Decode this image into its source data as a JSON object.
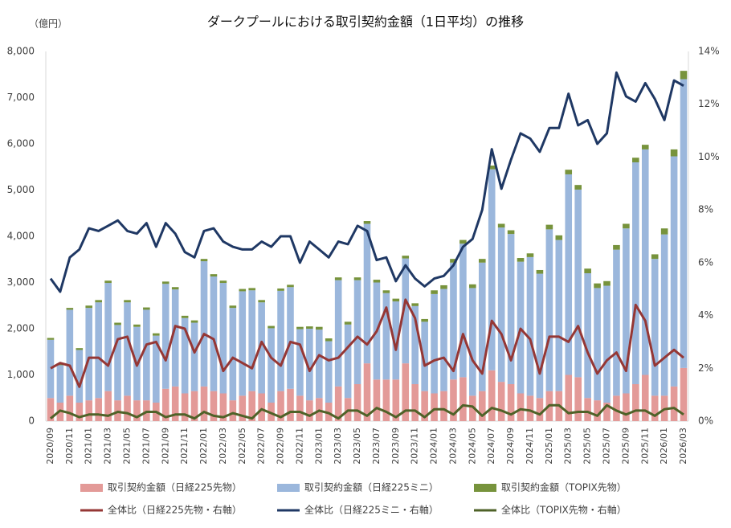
{
  "chart_data": {
    "type": "bar_line_combo",
    "title": "ダークプールにおける取引契約金額（1日平均）の推移",
    "y_unit_label": "（億円）",
    "categories": [
      "2020/09",
      null,
      "2020/11",
      null,
      "2021/01",
      null,
      "2021/03",
      null,
      "2021/05",
      null,
      "2021/07",
      null,
      "2021/09",
      null,
      "2021/11",
      null,
      "2022/01",
      null,
      "2022/03",
      null,
      "2022/05",
      null,
      "2022/07",
      null,
      "2022/09",
      null,
      "2022/11",
      null,
      "2023/01",
      null,
      "2023/03",
      null,
      "2023/05",
      null,
      "2023/07",
      null,
      "2023/09",
      null,
      "2023/11",
      null,
      "2024/01",
      null,
      "2024/03",
      null,
      "2024/05",
      null,
      "2024/07",
      null,
      "2024/09",
      null,
      "2024/11",
      null,
      "2025/01",
      null,
      "2025/03",
      null,
      "2025/05",
      null,
      "2025/07",
      null,
      "2025/09",
      null,
      "2025/11",
      null,
      "2026/01",
      null,
      "2026/03"
    ],
    "series": [
      {
        "name": "取引契約金額（日経225先物）",
        "kind": "bar",
        "color": "#e39a98",
        "values": [
          500,
          400,
          550,
          400,
          450,
          500,
          650,
          450,
          550,
          450,
          450,
          400,
          700,
          750,
          600,
          650,
          750,
          650,
          600,
          450,
          550,
          650,
          600,
          400,
          650,
          700,
          550,
          450,
          500,
          400,
          750,
          500,
          800,
          1250,
          900,
          900,
          900,
          1250,
          800,
          650,
          600,
          650,
          900,
          950,
          550,
          650,
          1100,
          850,
          800,
          600,
          550,
          500,
          650,
          650,
          1000,
          950,
          500,
          450,
          400,
          550,
          600,
          800,
          1000,
          550,
          550,
          750,
          1150
        ]
      },
      {
        "name": "取引契約金額（日経225ミニ）",
        "kind": "bar",
        "color": "#9bb7dc",
        "values": [
          1260,
          810,
          1860,
          1140,
          2000,
          2070,
          2340,
          1630,
          2020,
          1590,
          1960,
          1450,
          2270,
          2100,
          1630,
          1480,
          2710,
          2480,
          2390,
          2000,
          2260,
          2180,
          1970,
          1610,
          2170,
          2200,
          1440,
          1550,
          1480,
          1330,
          2300,
          1590,
          2250,
          3020,
          2100,
          1870,
          1690,
          2270,
          1690,
          1500,
          2150,
          2210,
          2530,
          2890,
          2330,
          2780,
          4350,
          3340,
          3250,
          2850,
          3000,
          2690,
          3500,
          3270,
          4340,
          4060,
          2700,
          2430,
          2530,
          3160,
          3570,
          4800,
          4880,
          2960,
          3490,
          4980,
          6250
        ]
      },
      {
        "name": "取引契約金額（TOPIX先物）",
        "kind": "bar",
        "color": "#77933c",
        "values": [
          40,
          40,
          40,
          40,
          50,
          50,
          50,
          50,
          50,
          50,
          50,
          50,
          50,
          50,
          50,
          50,
          50,
          50,
          50,
          50,
          50,
          50,
          50,
          50,
          50,
          50,
          50,
          50,
          60,
          60,
          60,
          60,
          60,
          60,
          60,
          60,
          60,
          60,
          60,
          60,
          80,
          80,
          80,
          80,
          80,
          80,
          80,
          80,
          80,
          80,
          80,
          80,
          100,
          100,
          100,
          100,
          100,
          100,
          100,
          100,
          100,
          100,
          100,
          100,
          130,
          150,
          180
        ]
      },
      {
        "name": "全体比（日経225先物・右軸）",
        "kind": "line",
        "axis": "y2",
        "color": "#953735",
        "values": [
          2.0,
          2.2,
          2.1,
          1.3,
          2.4,
          2.4,
          2.1,
          3.1,
          3.2,
          2.1,
          2.9,
          3.0,
          2.3,
          3.6,
          3.5,
          2.6,
          3.3,
          3.1,
          1.9,
          2.4,
          2.2,
          2.0,
          3.0,
          2.4,
          2.1,
          3.0,
          2.9,
          1.9,
          2.5,
          2.3,
          2.4,
          2.8,
          3.2,
          2.9,
          3.4,
          4.3,
          2.7,
          4.6,
          3.9,
          2.1,
          2.3,
          2.4,
          1.9,
          3.3,
          2.3,
          1.8,
          3.8,
          3.3,
          2.3,
          3.5,
          3.1,
          1.8,
          3.2,
          3.2,
          3.0,
          3.6,
          2.6,
          1.8,
          2.3,
          2.6,
          1.9,
          4.4,
          3.8,
          2.1,
          2.4,
          2.7,
          2.4
        ]
      },
      {
        "name": "全体比（日経225ミニ・右軸）",
        "kind": "line",
        "axis": "y2",
        "color": "#1f3864",
        "values": [
          5.4,
          4.9,
          6.2,
          6.5,
          7.3,
          7.2,
          7.4,
          7.6,
          7.2,
          7.1,
          7.5,
          6.6,
          7.5,
          7.1,
          6.4,
          6.2,
          7.2,
          7.3,
          6.8,
          6.6,
          6.5,
          6.5,
          6.8,
          6.6,
          7.0,
          7.0,
          6.0,
          6.8,
          6.5,
          6.2,
          6.8,
          6.7,
          7.4,
          7.2,
          6.1,
          6.2,
          5.3,
          5.9,
          5.4,
          5.1,
          5.4,
          5.5,
          5.9,
          6.6,
          6.9,
          8.0,
          10.3,
          8.8,
          9.9,
          10.9,
          10.7,
          10.2,
          11.1,
          11.1,
          12.4,
          11.2,
          11.4,
          10.5,
          10.9,
          13.2,
          12.3,
          12.1,
          12.8,
          12.2,
          11.4,
          12.9,
          12.7
        ]
      },
      {
        "name": "全体比（TOPIX先物・右軸）",
        "kind": "line",
        "axis": "y2",
        "color": "#4f6228",
        "values": [
          0.1,
          0.4,
          0.3,
          0.15,
          0.25,
          0.25,
          0.2,
          0.35,
          0.3,
          0.15,
          0.35,
          0.35,
          0.15,
          0.25,
          0.25,
          0.1,
          0.35,
          0.2,
          0.15,
          0.3,
          0.2,
          0.1,
          0.45,
          0.3,
          0.15,
          0.35,
          0.35,
          0.2,
          0.4,
          0.3,
          0.1,
          0.4,
          0.4,
          0.2,
          0.5,
          0.35,
          0.15,
          0.4,
          0.4,
          0.15,
          0.45,
          0.45,
          0.25,
          0.6,
          0.55,
          0.2,
          0.5,
          0.4,
          0.25,
          0.45,
          0.4,
          0.25,
          0.6,
          0.6,
          0.3,
          0.35,
          0.35,
          0.2,
          0.6,
          0.4,
          0.25,
          0.4,
          0.4,
          0.2,
          0.45,
          0.5,
          0.25
        ]
      }
    ],
    "ylim": [
      0,
      8000
    ],
    "yticks": [
      0,
      {
        "value": 1000,
        "label": "1,000"
      },
      {
        "value": 2000,
        "label": "2,000"
      },
      {
        "value": 3000,
        "label": "3,000"
      },
      {
        "value": 4000,
        "label": "4,000"
      },
      {
        "value": 5000,
        "label": "5,000"
      },
      {
        "value": 6000,
        "label": "6,000"
      },
      {
        "value": 7000,
        "label": "7,000"
      },
      {
        "value": 8000,
        "label": "8,000"
      }
    ],
    "y2lim": [
      0,
      14
    ],
    "y2ticks": [
      {
        "value": 0,
        "label": "0%"
      },
      {
        "value": 2,
        "label": "2%"
      },
      {
        "value": 4,
        "label": "4%"
      },
      {
        "value": 6,
        "label": "6%"
      },
      {
        "value": 8,
        "label": "8%"
      },
      {
        "value": 10,
        "label": "10%"
      },
      {
        "value": 12,
        "label": "12%"
      },
      {
        "value": 14,
        "label": "14%"
      }
    ],
    "grid": false,
    "legend": "bottom"
  }
}
